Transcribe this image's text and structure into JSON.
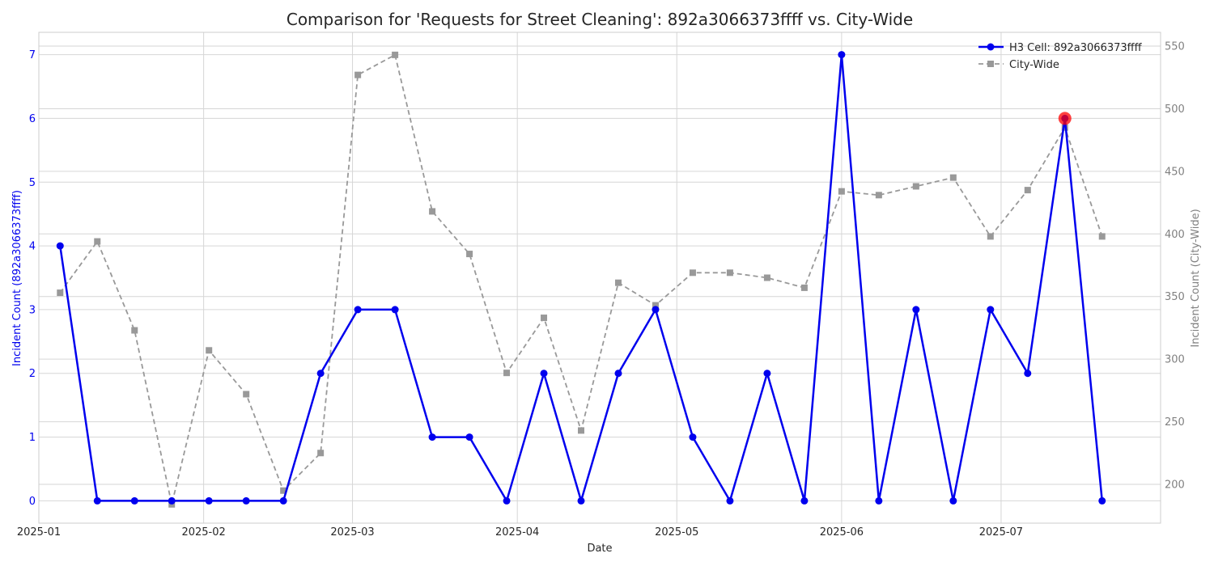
{
  "chart_data": {
    "type": "line",
    "title": "Comparison for 'Requests for Street Cleaning': 892a3066373ffff vs. City-Wide",
    "xlabel": "Date",
    "ylabel_left": "Incident Count (892a3066373ffff)",
    "ylabel_right": "Incident Count (City-Wide)",
    "x_tick_labels": [
      "2025-01",
      "2025-02",
      "2025-03",
      "2025-04",
      "2025-05",
      "2025-06",
      "2025-07"
    ],
    "y_left_ticks": [
      "0",
      "1",
      "2",
      "3",
      "4",
      "5",
      "6",
      "7"
    ],
    "y_right_ticks": [
      "200",
      "250",
      "300",
      "350",
      "400",
      "450",
      "500",
      "550"
    ],
    "xlim": [
      "2025-01-01",
      "2025-07-31"
    ],
    "ylim_left": [
      -0.35,
      7.35
    ],
    "ylim_right": [
      169,
      561
    ],
    "grid": true,
    "legend_position": "top-right",
    "x": [
      "2025-01-05",
      "2025-01-12",
      "2025-01-19",
      "2025-01-26",
      "2025-02-02",
      "2025-02-09",
      "2025-02-16",
      "2025-02-23",
      "2025-03-02",
      "2025-03-09",
      "2025-03-16",
      "2025-03-23",
      "2025-03-30",
      "2025-04-06",
      "2025-04-13",
      "2025-04-20",
      "2025-04-27",
      "2025-05-04",
      "2025-05-11",
      "2025-05-18",
      "2025-05-25",
      "2025-06-01",
      "2025-06-08",
      "2025-06-15",
      "2025-06-22",
      "2025-06-29",
      "2025-07-06",
      "2025-07-13",
      "2025-07-20"
    ],
    "series": [
      {
        "name": "H3 Cell: 892a3066373ffff",
        "axis": "left",
        "color": "#0000ee",
        "values": [
          4,
          0,
          0,
          0,
          0,
          0,
          0,
          2,
          3,
          3,
          1,
          1,
          0,
          2,
          0,
          2,
          3,
          1,
          0,
          2,
          0,
          7,
          0,
          3,
          0,
          3,
          2,
          6,
          0
        ]
      },
      {
        "name": "City-Wide",
        "axis": "right",
        "color": "#999999",
        "values": [
          353,
          394,
          323,
          184,
          307,
          272,
          195,
          225,
          527,
          543,
          418,
          384,
          289,
          333,
          243,
          361,
          343,
          369,
          369,
          365,
          357,
          434,
          431,
          438,
          445,
          398,
          435,
          485,
          398
        ]
      }
    ],
    "highlight": {
      "date": "2025-07-13",
      "value": 6,
      "color": "#ff0000"
    }
  }
}
